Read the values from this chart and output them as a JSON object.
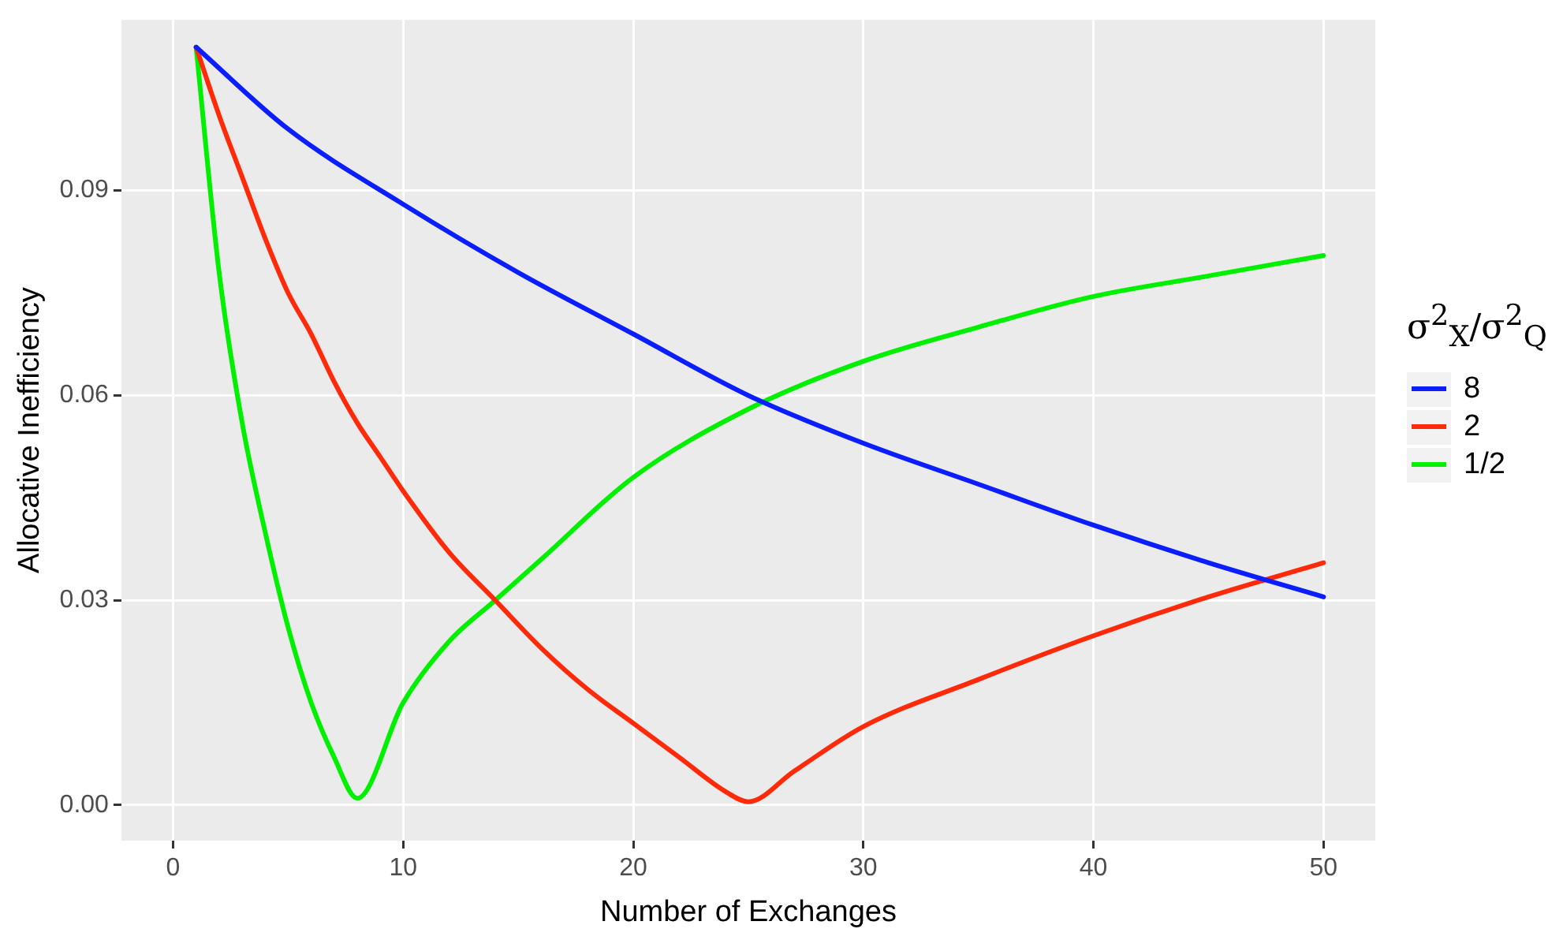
{
  "chart_data": {
    "type": "line",
    "xlabel": "Number of Exchanges",
    "ylabel": "Allocative Inefficiency",
    "legend_title": "σ$^{2}$$_{X}$/σ$^{2}$$_{Q}$",
    "legend": "right",
    "grid": true,
    "line_style": "solid",
    "marker": "none",
    "xlim": [
      -2.25,
      52.25
    ],
    "xticks": [
      0,
      10,
      20,
      30,
      40,
      50
    ],
    "ylim": [
      -0.0052,
      0.115
    ],
    "yticks": [
      {
        "value": 0,
        "label": "0.00"
      },
      {
        "value": 0.03,
        "label": "0.03"
      },
      {
        "value": 0.06,
        "label": "0.06"
      },
      {
        "value": 0.09,
        "label": "0.09"
      }
    ],
    "series": [
      {
        "name": "8",
        "color": "#0a1eff",
        "x": [
          1,
          5,
          10,
          15,
          20,
          25,
          30,
          35,
          40,
          45,
          50
        ],
        "values": [
          0.111,
          0.099,
          0.088,
          0.078,
          0.069,
          0.06,
          0.053,
          0.047,
          0.041,
          0.0355,
          0.0305
        ]
      },
      {
        "name": "2",
        "color": "#ff2a0a",
        "x": [
          1,
          2,
          3,
          4,
          5,
          6,
          7,
          8,
          9,
          10,
          12,
          14,
          16,
          18,
          20,
          22,
          24,
          25,
          27,
          30,
          35,
          40,
          45,
          50
        ],
        "values": [
          0.111,
          0.101,
          0.092,
          0.083,
          0.075,
          0.069,
          0.062,
          0.056,
          0.051,
          0.046,
          0.037,
          0.03,
          0.023,
          0.017,
          0.012,
          0.007,
          0.002,
          0.0005,
          0.005,
          0.0115,
          0.0184,
          0.0248,
          0.0305,
          0.0355
        ]
      },
      {
        "name": "1/2",
        "color": "#00f000",
        "x": [
          1,
          2,
          3,
          4,
          5,
          6,
          7,
          8,
          10,
          12,
          14,
          16,
          20,
          25,
          30,
          35,
          40,
          45,
          50
        ],
        "values": [
          0.111,
          0.078,
          0.056,
          0.04,
          0.026,
          0.015,
          0.007,
          0.001,
          0.015,
          0.024,
          0.03,
          0.036,
          0.048,
          0.058,
          0.065,
          0.07,
          0.0745,
          0.0775,
          0.0805
        ]
      }
    ]
  }
}
